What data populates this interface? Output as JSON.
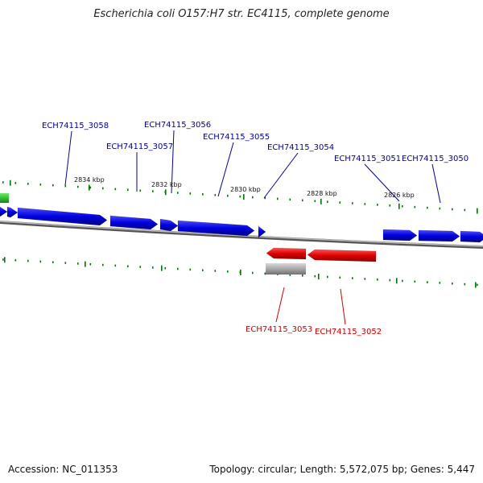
{
  "title": "Escherichia coli O157:H7 str. EC4115, complete genome",
  "footer": {
    "accession": "Accession: NC_011353",
    "summary": "Topology: circular; Length: 5,572,075 bp; Genes: 5,447"
  },
  "colors": {
    "forward_gene": "#0000dd",
    "reverse_gene": "#dd0000",
    "pseudo_gene": "#a0a0a0",
    "other_feature": "#22bb22",
    "tick": "#007700",
    "backbone": "#888888",
    "forward_label": "#000099",
    "reverse_label": "#cc0000"
  },
  "scale_labels": [
    "2834 kbp",
    "2832 kbp",
    "2830 kbp",
    "2828 kbp",
    "2826 kbp"
  ],
  "forward_gene_labels": [
    "ECH74115_3058",
    "ECH74115_3056",
    "ECH74115_3057",
    "ECH74115_3055",
    "ECH74115_3054",
    "ECH74115_3051",
    "ECH74115_3050"
  ],
  "reverse_gene_labels": [
    "ECH74115_3053",
    "ECH74115_3052"
  ]
}
